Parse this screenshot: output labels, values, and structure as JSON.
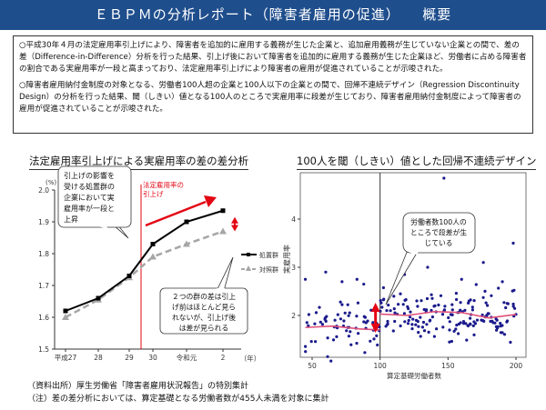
{
  "header": {
    "title": "ＥＢＰＭの分析レポート（障害者雇用の促進）　　概要"
  },
  "summary": {
    "p1": "○平成30年４月の法定雇用率引上げにより、障害者を追加的に雇用する義務が生じた企業と、追加雇用義務が生じていない企業との間で、差の差（Difference-in-Difference）分析を行った結果、引上げ後において障害者を追加的に雇用する義務が生じた企業ほど、労働者に占める障害者の割合である実雇用率が一段と高まっており、法定雇用率引上げにより障害者の雇用が促進されていることが示唆された。",
    "p2": "○障害者雇用納付金制度の対象となる、労働者100人超の企業と100人以下の企業との間で、回帰不連続デザイン（Regression Discontinuity Design）の分析を行った結果、閾（しきい）値となる100人のところで実雇用率に段差が生じており、障害者雇用納付金制度によって障害者の雇用が促進されていることが示唆された。"
  },
  "colors": {
    "header_bg": "#1f4e8c",
    "treated": "#000000",
    "control": "#a6a6a6",
    "arrow": "#e30613",
    "scatter": "#1a1a8c",
    "fit": "#e0507a"
  },
  "chart_data": [
    {
      "type": "line",
      "title": "法定雇用率引上げによる実雇用率の差の差分析",
      "y_unit": "(%)",
      "x_unit": "（年）",
      "categories": [
        "平成27",
        "28",
        "29",
        "30",
        "令和元",
        "2"
      ],
      "ylim": [
        1.5,
        2.0
      ],
      "yticks": [
        "1.5",
        "1.6",
        "1.7",
        "1.8",
        "1.9",
        "2.0"
      ],
      "series": [
        {
          "name": "処置群",
          "values": [
            1.62,
            1.66,
            1.73,
            1.83,
            1.9,
            1.935
          ]
        },
        {
          "name": "対照群",
          "values": [
            1.6,
            1.655,
            1.725,
            1.79,
            1.83,
            1.87
          ]
        }
      ],
      "annotations": {
        "box1": [
          "引上げの影響を",
          "受ける処置群の",
          "企業において実",
          "雇用率が一段と",
          "上昇"
        ],
        "red_label": [
          "法定雇用率の",
          "引上げ"
        ],
        "box2": [
          "２つの群の差は引上",
          "げ前はほとんど見ら",
          "れないが、引上げ後",
          "は差が見られる"
        ]
      }
    },
    {
      "type": "scatter",
      "title": "100人を閾（しきい）値とした回帰不連続デザイン",
      "xlabel": "算定基礎労働者数",
      "ylabel": "実雇用率",
      "xlim": [
        40,
        205
      ],
      "ylim": [
        1.3,
        4.9
      ],
      "xticks": [
        50,
        100,
        150,
        200
      ],
      "yticks": [
        2,
        3,
        4
      ],
      "threshold": 100,
      "fit_left": {
        "x": [
          45,
          65,
          85,
          100
        ],
        "y": [
          1.75,
          1.78,
          1.72,
          1.7
        ]
      },
      "fit_right": {
        "x": [
          100,
          120,
          140,
          160,
          180,
          200
        ],
        "y": [
          2.03,
          2.0,
          2.08,
          2.06,
          1.95,
          2.02
        ]
      },
      "callout": [
        "労働者数100人の",
        "ところで段差が生",
        "じている"
      ]
    }
  ],
  "notes": {
    "source": "（資料出所）厚生労働省「障害者雇用状況報告」の特別集計",
    "note": "（注）差の差分析においては、算定基礎となる労働者数が455人未満を対象に集計"
  }
}
